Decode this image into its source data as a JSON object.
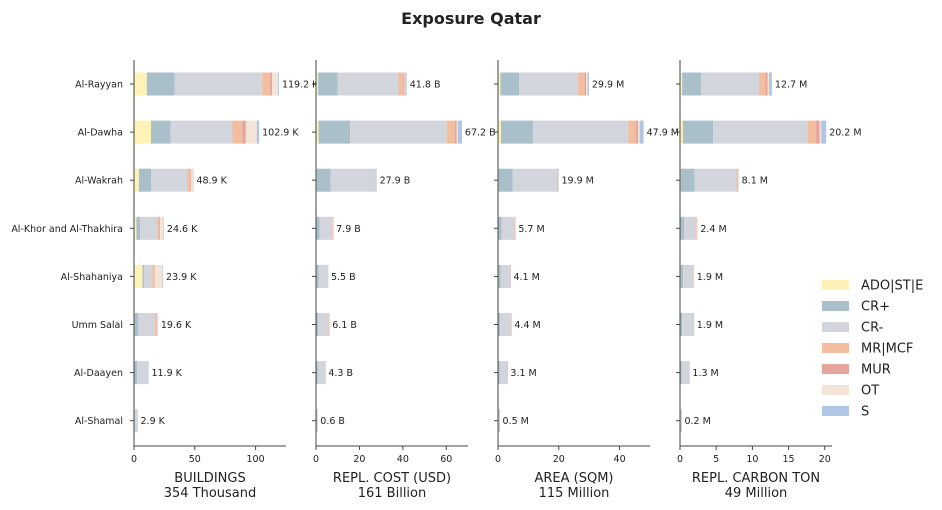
{
  "chart_data": {
    "type": "bar",
    "title": "Exposure Qatar",
    "orientation": "horizontal",
    "stacked": true,
    "categories": [
      "Al-Rayyan",
      "Al-Dawha",
      "Al-Wakrah",
      "Al-Khor and Al-Thakhira",
      "Al-Shahaniya",
      "Umm Salal",
      "Al-Daayen",
      "Al-Shamal"
    ],
    "legend": {
      "position": "right",
      "entries": [
        {
          "name": "ADO|ST|E",
          "color": "#fdf3b8"
        },
        {
          "name": "CR+",
          "color": "#a9bfc9"
        },
        {
          "name": "CR-",
          "color": "#d2d5dc"
        },
        {
          "name": "MR|MCF",
          "color": "#f3bd9f"
        },
        {
          "name": "MUR",
          "color": "#e6a49c"
        },
        {
          "name": "OT",
          "color": "#f3e4d8"
        },
        {
          "name": "S",
          "color": "#b0c6e6"
        }
      ]
    },
    "panels": [
      {
        "xlabel": "BUILDINGS",
        "total": "354 Thousand",
        "xlim": [
          0,
          125
        ],
        "xticks": [
          0,
          50,
          100
        ],
        "labels": [
          "119.2 K",
          "102.9 K",
          "48.9 K",
          "24.6 K",
          "23.9 K",
          "19.6 K",
          "11.9 K",
          "2.9 K"
        ],
        "series": [
          {
            "name": "ADO|ST|E",
            "values": [
              10.5,
              14,
              4,
              2,
              7,
              0.5,
              0,
              0
            ]
          },
          {
            "name": "CR+",
            "values": [
              23,
              16,
              10,
              3,
              1.5,
              3,
              2.5,
              0.5
            ]
          },
          {
            "name": "CR-",
            "values": [
              72,
              51,
              30,
              14,
              6.5,
              13.5,
              8.5,
              2.1
            ]
          },
          {
            "name": "MR|MCF",
            "values": [
              6.5,
              8,
              2.5,
              2,
              1.5,
              1.3,
              0.4,
              0.1
            ]
          },
          {
            "name": "MUR",
            "values": [
              1.5,
              3,
              0.5,
              0.5,
              0.4,
              0.5,
              0.2,
              0.1
            ]
          },
          {
            "name": "OT",
            "values": [
              5,
              9,
              1.4,
              2.6,
              6.5,
              0.6,
              0.2,
              0.1
            ]
          },
          {
            "name": "S",
            "values": [
              0.7,
              1.9,
              0.5,
              0.5,
              0.5,
              0.2,
              0.1,
              0
            ]
          }
        ]
      },
      {
        "xlabel": "REPL. COST (USD)",
        "total": "161 Billion",
        "xlim": [
          0,
          70
        ],
        "xticks": [
          0,
          20,
          40,
          60
        ],
        "labels": [
          "41.8 B",
          "67.2 B",
          "27.9 B",
          "7.9 B",
          "5.5 B",
          "6.1 B",
          "4.3 B",
          "0.6 B"
        ],
        "series": [
          {
            "name": "ADO|ST|E",
            "values": [
              1,
              1.2,
              0.3,
              0.2,
              0.3,
              0,
              0,
              0
            ]
          },
          {
            "name": "CR+",
            "values": [
              9,
              14.5,
              6.5,
              1.5,
              1,
              1,
              0.8,
              0.1
            ]
          },
          {
            "name": "CR-",
            "values": [
              28,
              44.5,
              20.5,
              5.8,
              3.9,
              4.8,
              3.3,
              0.45
            ]
          },
          {
            "name": "MR|MCF",
            "values": [
              2.2,
              3.8,
              0.3,
              0.2,
              0.15,
              0.15,
              0.1,
              0.03
            ]
          },
          {
            "name": "MUR",
            "values": [
              0.6,
              0.8,
              0.1,
              0.1,
              0.05,
              0.05,
              0.03,
              0.01
            ]
          },
          {
            "name": "OT",
            "values": [
              0.4,
              0.6,
              0.1,
              0.05,
              0.05,
              0.05,
              0.04,
              0.01
            ]
          },
          {
            "name": "S",
            "values": [
              0.6,
              1.8,
              0.1,
              0.05,
              0.05,
              0.05,
              0.03,
              0
            ]
          }
        ]
      },
      {
        "xlabel": "AREA (SQM)",
        "total": "115 Million",
        "xlim": [
          0,
          50
        ],
        "xticks": [
          0,
          20,
          40
        ],
        "labels": [
          "29.9 M",
          "47.9 M",
          "19.9 M",
          "5.7 M",
          "4.1 M",
          "4.4 M",
          "3.1 M",
          "0.5 M"
        ],
        "series": [
          {
            "name": "ADO|ST|E",
            "values": [
              0.8,
              1,
              0.2,
              0.1,
              0.2,
              0,
              0,
              0
            ]
          },
          {
            "name": "CR+",
            "values": [
              6.2,
              10.5,
              4.6,
              1.1,
              0.7,
              0.7,
              0.6,
              0.1
            ]
          },
          {
            "name": "CR-",
            "values": [
              19.4,
              31.4,
              14.5,
              4.2,
              3,
              3.5,
              2.4,
              0.37
            ]
          },
          {
            "name": "MR|MCF",
            "values": [
              2,
              2.5,
              0.35,
              0.15,
              0.1,
              0.1,
              0.05,
              0.02
            ]
          },
          {
            "name": "MUR",
            "values": [
              0.6,
              0.7,
              0.1,
              0.05,
              0.05,
              0.03,
              0.02,
              0.01
            ]
          },
          {
            "name": "OT",
            "values": [
              0.4,
              0.5,
              0.1,
              0.05,
              0.03,
              0.04,
              0.02,
              0
            ]
          },
          {
            "name": "S",
            "values": [
              0.5,
              1.3,
              0.05,
              0.05,
              0.02,
              0.03,
              0.01,
              0
            ]
          }
        ]
      },
      {
        "xlabel": "REPL. CARBON TON",
        "total": "49 Million",
        "xlim": [
          0,
          21
        ],
        "xticks": [
          0,
          5,
          10,
          15,
          20
        ],
        "labels": [
          "12.7 M",
          "20.2 M",
          "8.1 M",
          "2.4 M",
          "1.9 M",
          "1.9 M",
          "1.3 M",
          "0.2 M"
        ],
        "series": [
          {
            "name": "ADO|ST|E",
            "values": [
              0.3,
              0.4,
              0.1,
              0.05,
              0.1,
              0,
              0,
              0
            ]
          },
          {
            "name": "CR+",
            "values": [
              2.6,
              4.2,
              1.9,
              0.5,
              0.35,
              0.3,
              0.25,
              0.03
            ]
          },
          {
            "name": "CR-",
            "values": [
              8,
              13,
              5.8,
              1.6,
              1.3,
              1.5,
              1,
              0.15
            ]
          },
          {
            "name": "MR|MCF",
            "values": [
              0.9,
              1.2,
              0.15,
              0.1,
              0.05,
              0.05,
              0.03,
              0.01
            ]
          },
          {
            "name": "MUR",
            "values": [
              0.3,
              0.5,
              0.05,
              0.05,
              0.02,
              0.02,
              0.01,
              0
            ]
          },
          {
            "name": "OT",
            "values": [
              0.2,
              0.2,
              0.05,
              0.05,
              0.04,
              0.02,
              0.01,
              0
            ]
          },
          {
            "name": "S",
            "values": [
              0.4,
              0.7,
              0.05,
              0.05,
              0.04,
              0.01,
              0,
              0.01
            ]
          }
        ]
      }
    ]
  }
}
